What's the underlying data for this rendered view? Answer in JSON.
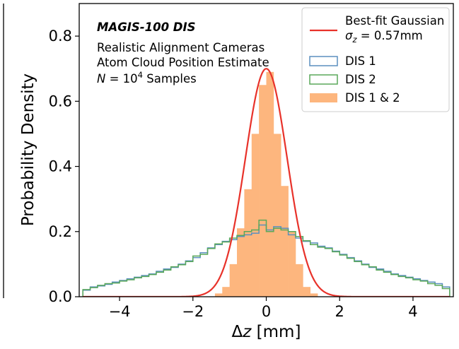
{
  "chart_data": {
    "type": "histogram",
    "title": "",
    "xlabel": "Δz [mm]",
    "ylabel": "Probability Density",
    "xlim": [
      -5.1,
      5.1
    ],
    "ylim": [
      0.0,
      0.9
    ],
    "x_ticks": [
      {
        "value": -4,
        "label": "−4"
      },
      {
        "value": -2,
        "label": "−2"
      },
      {
        "value": 0,
        "label": "0"
      },
      {
        "value": 2,
        "label": "2"
      },
      {
        "value": 4,
        "label": "4"
      }
    ],
    "y_ticks": [
      {
        "value": 0.0,
        "label": "0.0"
      },
      {
        "value": 0.2,
        "label": "0.2"
      },
      {
        "value": 0.4,
        "label": "0.4"
      },
      {
        "value": 0.6,
        "label": "0.6"
      },
      {
        "value": 0.8,
        "label": "0.8"
      }
    ],
    "grid": false,
    "legend_position": "upper right",
    "annotation": {
      "heading": "MAGIS-100 DIS",
      "line1": "Realistic Alignment Cameras",
      "line2": "Atom Cloud Position Estimate",
      "line3_prefix": "N",
      "line3_eq": " = 10",
      "line3_sup": "4",
      "line3_suffix": " Samples"
    },
    "legend": {
      "gaussian_label": "Best-fit Gaussian",
      "sigma_symbol": "σ",
      "sigma_sub": "z",
      "sigma_value": " = 0.57mm",
      "dis1_label": "DIS 1",
      "dis2_label": "DIS 2",
      "combined_label": "DIS 1 & 2"
    },
    "colors": {
      "gaussian": "#e8322a",
      "dis1": "#5b8fbf",
      "dis2": "#5aa85a",
      "combined": "#fdb67e"
    },
    "bins": {
      "start": -5.0,
      "width": 0.2
    },
    "series": [
      {
        "name": "DIS 1",
        "style": "step",
        "values": [
          0.02,
          0.03,
          0.033,
          0.038,
          0.045,
          0.05,
          0.055,
          0.06,
          0.065,
          0.07,
          0.078,
          0.085,
          0.09,
          0.1,
          0.11,
          0.12,
          0.135,
          0.15,
          0.16,
          0.17,
          0.175,
          0.185,
          0.19,
          0.195,
          0.22,
          0.205,
          0.215,
          0.21,
          0.19,
          0.18,
          0.17,
          0.165,
          0.155,
          0.15,
          0.14,
          0.13,
          0.12,
          0.11,
          0.1,
          0.09,
          0.085,
          0.078,
          0.07,
          0.065,
          0.06,
          0.055,
          0.05,
          0.045,
          0.04,
          0.03
        ]
      },
      {
        "name": "DIS 2",
        "style": "step",
        "values": [
          0.022,
          0.028,
          0.035,
          0.04,
          0.042,
          0.048,
          0.052,
          0.058,
          0.062,
          0.068,
          0.075,
          0.082,
          0.092,
          0.098,
          0.108,
          0.125,
          0.13,
          0.148,
          0.162,
          0.168,
          0.18,
          0.188,
          0.2,
          0.205,
          0.235,
          0.2,
          0.21,
          0.205,
          0.2,
          0.185,
          0.172,
          0.16,
          0.152,
          0.148,
          0.138,
          0.128,
          0.118,
          0.108,
          0.098,
          0.092,
          0.082,
          0.075,
          0.068,
          0.062,
          0.058,
          0.052,
          0.048,
          0.04,
          0.035,
          0.025
        ]
      },
      {
        "name": "DIS 1 & 2",
        "style": "filled",
        "values": [
          0,
          0,
          0,
          0,
          0,
          0,
          0,
          0,
          0,
          0,
          0,
          0,
          0,
          0,
          0,
          0,
          0,
          0,
          0.01,
          0.03,
          0.1,
          0.21,
          0.33,
          0.5,
          0.65,
          0.69,
          0.5,
          0.34,
          0.2,
          0.1,
          0.03,
          0.01,
          0,
          0,
          0,
          0,
          0,
          0,
          0,
          0,
          0,
          0,
          0,
          0,
          0,
          0,
          0,
          0,
          0,
          0
        ]
      },
      {
        "name": "Best-fit Gaussian",
        "style": "curve",
        "mu": 0,
        "sigma": 0.57,
        "peak": 0.7
      }
    ]
  }
}
